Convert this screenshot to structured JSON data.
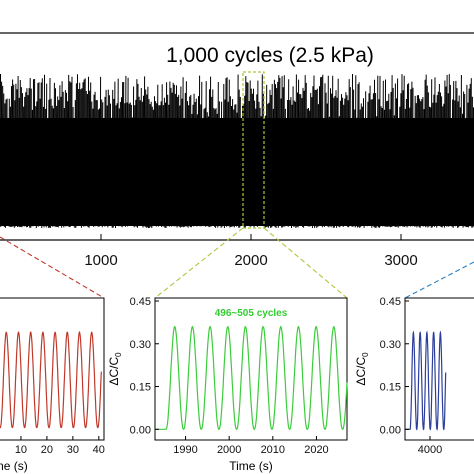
{
  "chart_data": [
    {
      "type": "line",
      "panel": "main",
      "title": "1,000 cycles (2.5 kPa)",
      "xlabel": "",
      "ylabel": "",
      "x_ticks": [
        1000,
        2000,
        3000
      ],
      "xlim": [
        -300,
        4000
      ],
      "highlight_window_x": [
        1985,
        2025
      ],
      "series": [
        {
          "color": "#000000",
          "description_values": {
            "cycle_count": 1000,
            "y_min": 0.0,
            "y_max": 0.36
          }
        }
      ]
    },
    {
      "type": "line",
      "panel": "left-inset",
      "xlabel": "Time (s)",
      "ylabel": "",
      "x_ticks": [
        10,
        20,
        30,
        40
      ],
      "xlim": [
        0,
        42
      ],
      "ylim": [
        -0.02,
        0.45
      ],
      "series": [
        {
          "color": "#c0392b",
          "peaks": 8,
          "start_x": 2,
          "period": 4.7,
          "peak_value": 0.35
        }
      ]
    },
    {
      "type": "line",
      "panel": "center-inset",
      "title": "496~505 cycles",
      "xlabel": "Time (s)",
      "ylabel": "ΔC/C0",
      "x_ticks": [
        1990,
        2000,
        2010,
        2020
      ],
      "y_ticks": [
        "0.00",
        "0.15",
        "0.30",
        "0.45"
      ],
      "xlim": [
        1983,
        2027
      ],
      "ylim": [
        -0.02,
        0.45
      ],
      "series": [
        {
          "color": "#3ccc3c",
          "peaks": 10,
          "start_x": 1985.5,
          "period": 4.05,
          "peak_value": 0.36
        }
      ]
    },
    {
      "type": "line",
      "panel": "right-inset",
      "xlabel": "",
      "ylabel": "ΔC/C0",
      "x_ticks": [
        4000
      ],
      "y_ticks": [
        "0.00",
        "0.15",
        "0.30",
        "0.45"
      ],
      "xlim": [
        3985,
        4030
      ],
      "ylim": [
        -0.02,
        0.45
      ],
      "series": [
        {
          "color": "#2c3e9c",
          "peaks": 5,
          "start_x": 3988,
          "period": 4.05,
          "peak_value": 0.34
        }
      ]
    }
  ],
  "labels": {
    "main_title": "1,000 cycles (2.5 kPa)",
    "main_tick_1000": "1000",
    "main_tick_2000": "2000",
    "main_tick_3000": "3000",
    "left_ticks": [
      "10",
      "20",
      "30",
      "40"
    ],
    "left_xlabel": "Time (s)",
    "center_title": "496~505 cycles",
    "center_ticks": [
      "1990",
      "2000",
      "2010",
      "2020"
    ],
    "center_xlabel": "Time (s)",
    "center_yticks": [
      "0.45",
      "0.30",
      "0.15",
      "0.00"
    ],
    "right_yticks": [
      "0.45",
      "0.30",
      "0.15",
      "0.00"
    ],
    "right_xtick": "4000",
    "ylabel_main": "ΔC/C",
    "ylabel_sub": "0"
  },
  "colors": {
    "left_connector": "#c0392b",
    "center_connector": "#a8c93a",
    "right_connector": "#2a7fc0",
    "center_title": "#33cc33",
    "highlight_box": "#a8c93a"
  }
}
